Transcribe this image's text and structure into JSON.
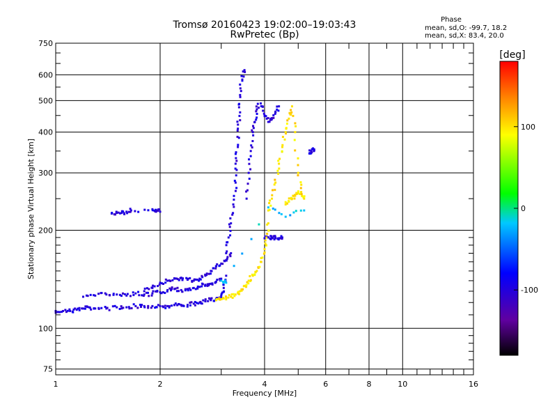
{
  "chart_data": {
    "type": "scatter",
    "title": "Tromsø 20160423 19:02:00–19:03:43",
    "subtitle": "RwPretec (Bp)",
    "xlabel": "Frequency [MHz]",
    "ylabel": "Stationary phase Virtual Height [km]",
    "x_scale": "log",
    "y_scale": "log",
    "xlim": [
      1,
      16
    ],
    "ylim": [
      72,
      750
    ],
    "x_ticks": [
      1,
      2,
      4,
      6,
      8,
      10,
      16
    ],
    "y_ticks": [
      75,
      100,
      200,
      300,
      400,
      500,
      600,
      750
    ],
    "grid": true,
    "phase_stats": {
      "title": "Phase",
      "line_o": "mean, sd,O: -99.7, 18.2",
      "line_x": "mean, sd,X:  83.4, 20.0"
    },
    "colorbar": {
      "label": "[deg]",
      "range": [
        -180,
        180
      ],
      "ticks": [
        -100,
        0,
        100
      ],
      "colors": [
        "#000000",
        "#6000a0",
        "#0000ff",
        "#00c8ff",
        "#00ff00",
        "#ffff00",
        "#ff8000",
        "#ff0000"
      ]
    },
    "series": [
      {
        "color_value": -100,
        "x": [
          1.0,
          1.05,
          1.1,
          1.15,
          1.2,
          1.25,
          1.3,
          1.4,
          1.5,
          1.6,
          1.7,
          1.8,
          1.9,
          2.0,
          2.1,
          2.2,
          2.3,
          2.4,
          2.5,
          2.6,
          2.7,
          2.8,
          2.9,
          3.0,
          3.05,
          3.1
        ],
        "y": [
          113,
          113,
          113,
          114,
          115,
          116,
          115,
          115,
          116,
          116,
          117,
          117,
          117,
          117,
          117,
          118,
          118,
          118,
          119,
          120,
          121,
          122,
          123,
          126,
          133,
          145
        ]
      },
      {
        "color_value": -100,
        "x": [
          1.2,
          1.3,
          1.4,
          1.5,
          1.6,
          1.7,
          1.8,
          1.9,
          2.0,
          2.1,
          2.2,
          2.3,
          2.4,
          2.5,
          2.6,
          2.7,
          2.8,
          2.9,
          3.0
        ],
        "y": [
          125,
          126,
          127,
          127,
          126,
          128,
          127,
          128,
          129,
          131,
          132,
          131,
          132,
          133,
          134,
          136,
          137,
          139,
          142
        ]
      },
      {
        "color_value": -100,
        "x": [
          1.8,
          1.9,
          2.0,
          2.1,
          2.2,
          2.3,
          2.4,
          2.5,
          2.6,
          2.7,
          2.8,
          2.9,
          3.0,
          3.1,
          3.2
        ],
        "y": [
          130,
          133,
          138,
          140,
          142,
          143,
          141,
          140,
          142,
          145,
          150,
          155,
          158,
          162,
          170
        ]
      },
      {
        "color_value": -100,
        "x": [
          3.1,
          3.15,
          3.2,
          3.25,
          3.3,
          3.3,
          3.35,
          3.35,
          3.4,
          3.4,
          3.45,
          3.5
        ],
        "y": [
          170,
          190,
          210,
          240,
          280,
          320,
          360,
          410,
          460,
          520,
          580,
          620
        ]
      },
      {
        "color_value": -100,
        "x": [
          3.55,
          3.6,
          3.65,
          3.7,
          3.75,
          3.8,
          3.9,
          4.0,
          4.1,
          4.2,
          4.3,
          4.4
        ],
        "y": [
          250,
          300,
          350,
          400,
          430,
          470,
          490,
          450,
          430,
          440,
          460,
          480
        ]
      },
      {
        "color_value": -100,
        "x": [
          4.0,
          4.1,
          4.2,
          4.3,
          4.4,
          4.5
        ],
        "y": [
          189,
          190,
          189,
          190,
          189,
          190
        ]
      },
      {
        "color_value": -100,
        "x": [
          1.45,
          1.5,
          1.55,
          1.6,
          1.65,
          1.9,
          1.95,
          2.0
        ],
        "y": [
          225,
          226,
          226,
          228,
          230,
          232,
          230,
          228
        ]
      },
      {
        "color_value": -100,
        "x": [
          5.4,
          5.45,
          5.5,
          5.55
        ],
        "y": [
          345,
          350,
          355,
          350
        ]
      },
      {
        "color_value": 100,
        "x": [
          2.9,
          3.0,
          3.1,
          3.2,
          3.3,
          3.4,
          3.5,
          3.6,
          3.7,
          3.8,
          3.9,
          4.0,
          4.05,
          4.1
        ],
        "y": [
          122,
          123,
          124,
          125,
          127,
          130,
          135,
          140,
          145,
          150,
          160,
          175,
          190,
          210
        ]
      },
      {
        "color_value": 100,
        "x": [
          4.1,
          4.2,
          4.3,
          4.4,
          4.5,
          4.6,
          4.7,
          4.8,
          4.9,
          5.0,
          5.1,
          5.2
        ],
        "y": [
          230,
          250,
          280,
          320,
          360,
          400,
          440,
          480,
          400,
          300,
          260,
          250
        ]
      },
      {
        "color_value": 100,
        "x": [
          4.6,
          4.7,
          4.8,
          4.9,
          5.0,
          5.1
        ],
        "y": [
          240,
          245,
          250,
          255,
          260,
          262
        ]
      },
      {
        "color_value": -20,
        "x": [
          3.0,
          3.1,
          4.1,
          4.6,
          5.2
        ],
        "y": [
          140,
          138,
          235,
          220,
          230
        ]
      }
    ]
  }
}
